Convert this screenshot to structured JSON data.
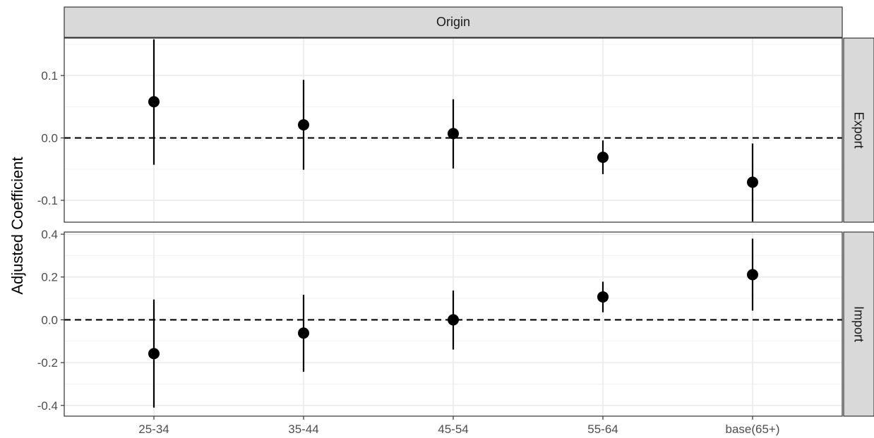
{
  "chart_data": {
    "type": "scatter",
    "subtype": "coefficient-plot-with-error-bars",
    "facet_column_label": "Origin",
    "ylabel": "Adjusted Coefficient",
    "xlabel": "",
    "categories": [
      "25-34",
      "35-44",
      "45-54",
      "55-64",
      "base(65+)"
    ],
    "reference_line": 0,
    "grid": true,
    "colors": {
      "points": "#000000",
      "strip_fill": "#d9d9d9",
      "grid": "#ebebeb",
      "panel_border": "#333333"
    },
    "panels": [
      {
        "name": "Export",
        "ylim": [
          -0.135,
          0.16
        ],
        "yticks": [
          -0.1,
          0.0,
          0.1
        ],
        "ytick_labels": [
          "-0.1",
          "0.0",
          "0.1"
        ],
        "points": [
          {
            "x": "25-34",
            "y": 0.058,
            "lower": -0.043,
            "upper": 0.158
          },
          {
            "x": "35-44",
            "y": 0.021,
            "lower": -0.051,
            "upper": 0.093
          },
          {
            "x": "45-54",
            "y": 0.007,
            "lower": -0.049,
            "upper": 0.062
          },
          {
            "x": "55-64",
            "y": -0.031,
            "lower": -0.058,
            "upper": -0.004
          },
          {
            "x": "base(65+)",
            "y": -0.071,
            "lower": -0.134,
            "upper": -0.009
          }
        ]
      },
      {
        "name": "Import",
        "ylim": [
          -0.45,
          0.41
        ],
        "yticks": [
          -0.4,
          -0.2,
          0.0,
          0.2,
          0.4
        ],
        "ytick_labels": [
          "-0.4",
          "-0.2",
          "0.0",
          "0.2",
          "0.4"
        ],
        "points": [
          {
            "x": "25-34",
            "y": -0.158,
            "lower": -0.41,
            "upper": 0.095
          },
          {
            "x": "35-44",
            "y": -0.062,
            "lower": -0.243,
            "upper": 0.117
          },
          {
            "x": "45-54",
            "y": 0.0,
            "lower": -0.139,
            "upper": 0.137
          },
          {
            "x": "55-64",
            "y": 0.107,
            "lower": 0.035,
            "upper": 0.178
          },
          {
            "x": "base(65+)",
            "y": 0.211,
            "lower": 0.043,
            "upper": 0.379
          }
        ]
      }
    ]
  }
}
